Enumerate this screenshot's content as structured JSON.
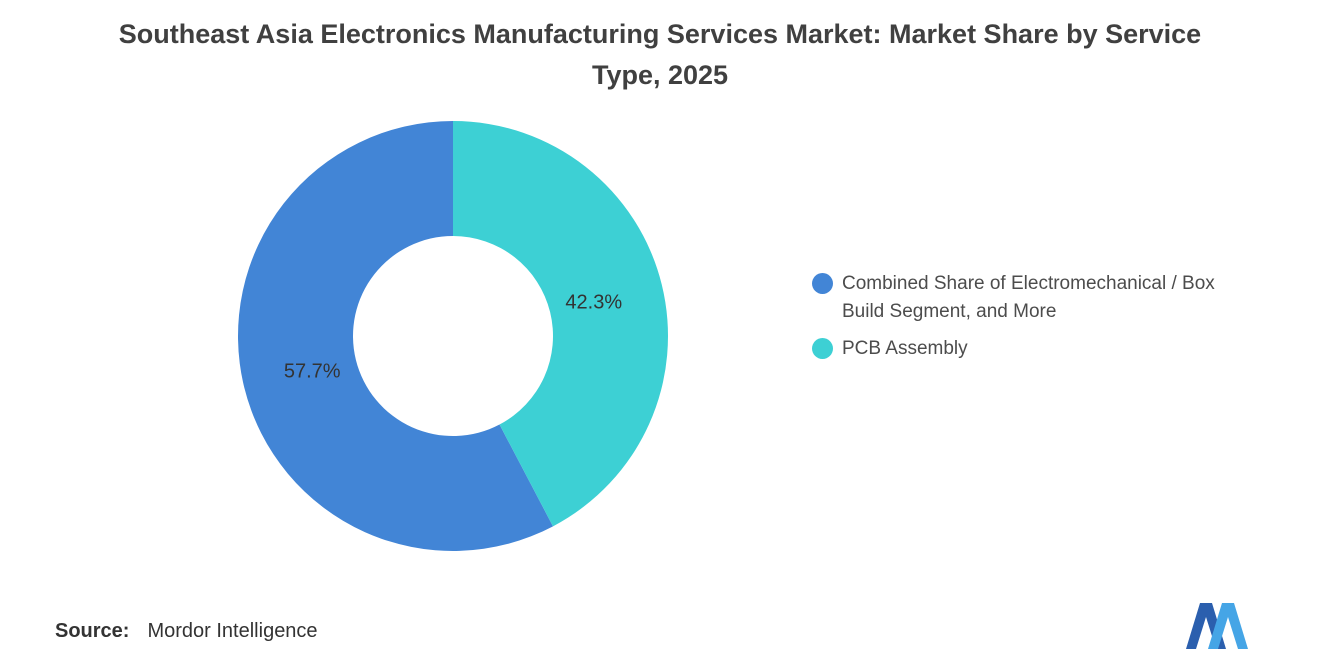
{
  "title": "Southeast Asia Electronics Manufacturing Services Market: Market Share by Service Type, 2025",
  "chart_data": {
    "type": "pie",
    "subtype": "donut",
    "start_angle_deg": 152.28,
    "direction": "clockwise",
    "legend_position": "right",
    "grid": false,
    "segments": [
      {
        "label": "Combined Share of Electromechanical / Box Build Segment, and More",
        "value": 57.7,
        "data_label": "57.7%",
        "color": "#4285d6"
      },
      {
        "label": "PCB Assembly",
        "value": 42.3,
        "data_label": "42.3%",
        "color": "#3dd0d4"
      }
    ]
  },
  "source": {
    "label": "Source:",
    "value": "Mordor Intelligence"
  },
  "logo": {
    "name": "mordor-intelligence-logo",
    "dark_color": "#2b5fae",
    "light_color": "#45a5e6"
  }
}
